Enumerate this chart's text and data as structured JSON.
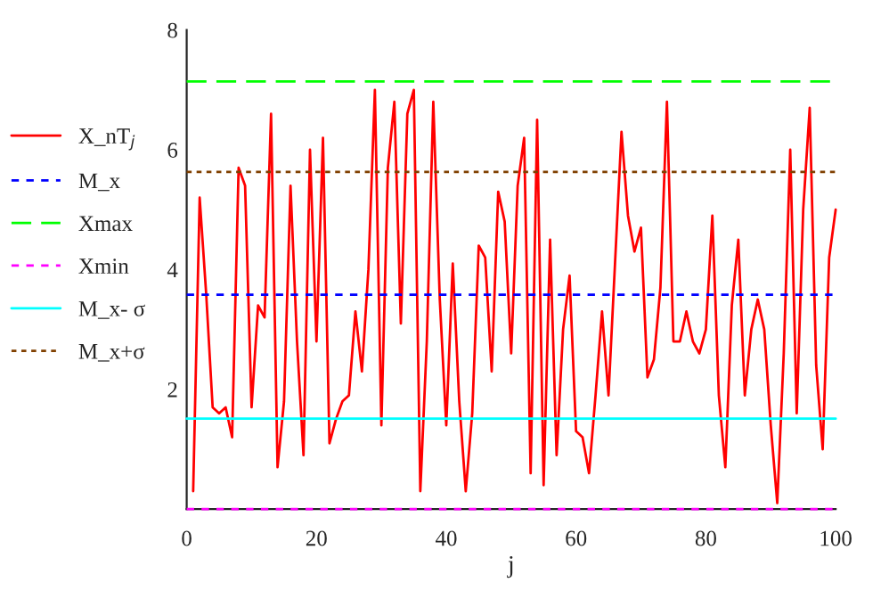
{
  "chart_data": {
    "type": "line",
    "xlabel": "j",
    "xlim": [
      0,
      100
    ],
    "xticks": [
      0,
      20,
      40,
      60,
      80,
      100
    ],
    "ylim": [
      0,
      8
    ],
    "yticks": [
      {
        "value": 0,
        "label": null
      },
      2,
      4,
      6,
      8
    ],
    "grid": false,
    "legend": "left",
    "marker": "none",
    "series": [
      {
        "name": "X_nT$_{j}$",
        "color": "#ff0000",
        "line_style": "solid",
        "x": [
          1,
          2,
          3,
          4,
          5,
          6,
          7,
          8,
          9,
          10,
          11,
          12,
          13,
          14,
          15,
          16,
          17,
          18,
          19,
          20,
          21,
          22,
          23,
          24,
          25,
          26,
          27,
          28,
          29,
          30,
          31,
          32,
          33,
          34,
          35,
          36,
          37,
          38,
          39,
          40,
          41,
          42,
          43,
          44,
          45,
          46,
          47,
          48,
          49,
          50,
          51,
          52,
          53,
          54,
          55,
          56,
          57,
          58,
          59,
          60,
          61,
          62,
          63,
          64,
          65,
          66,
          67,
          68,
          69,
          70,
          71,
          72,
          73,
          74,
          75,
          76,
          77,
          78,
          79,
          80,
          81,
          82,
          83,
          84,
          85,
          86,
          87,
          88,
          89,
          90,
          91,
          92,
          93,
          94,
          95,
          96,
          97,
          98,
          99,
          100
        ],
        "values": [
          0.3,
          5.2,
          3.6,
          1.7,
          1.6,
          1.7,
          1.2,
          5.7,
          5.4,
          1.7,
          3.4,
          3.2,
          6.6,
          0.7,
          1.8,
          5.4,
          2.8,
          0.9,
          6.0,
          2.8,
          6.2,
          1.1,
          1.5,
          1.8,
          1.9,
          3.3,
          2.3,
          4.0,
          7.0,
          1.4,
          5.7,
          6.8,
          3.1,
          6.6,
          7.0,
          0.3,
          2.8,
          6.8,
          3.5,
          1.4,
          4.1,
          1.8,
          0.3,
          1.6,
          4.4,
          4.2,
          2.3,
          5.3,
          4.8,
          2.6,
          5.4,
          6.2,
          0.6,
          6.5,
          0.4,
          4.5,
          0.9,
          3.0,
          3.9,
          1.3,
          1.2,
          0.6,
          1.9,
          3.3,
          1.9,
          4.1,
          6.3,
          4.9,
          4.3,
          4.7,
          2.2,
          2.5,
          3.7,
          6.8,
          2.8,
          2.8,
          3.3,
          2.8,
          2.6,
          3.0,
          4.9,
          1.9,
          0.7,
          3.4,
          4.5,
          1.9,
          3.0,
          3.5,
          3.0,
          1.4,
          0.1,
          2.6,
          6.0,
          1.6,
          5.0,
          6.7,
          2.4,
          1.0,
          4.2,
          5.0
        ]
      },
      {
        "name": "M_x",
        "color": "#0000ff",
        "line_style": "dashed",
        "x": [
          0,
          100
        ],
        "values": [
          3.58,
          3.58
        ]
      },
      {
        "name": "Xmax",
        "color": "#00ff00",
        "line_style": "longdash",
        "x": [
          0,
          100
        ],
        "values": [
          7.14,
          7.14
        ]
      },
      {
        "name": "Xmin",
        "color": "#ff00ff",
        "line_style": "dashed",
        "x": [
          0,
          100
        ],
        "values": [
          0.0,
          0.0
        ]
      },
      {
        "name": "M_x- σ",
        "color": "#00ffff",
        "line_style": "solid",
        "x": [
          0,
          100
        ],
        "values": [
          1.51,
          1.51
        ]
      },
      {
        "name": "M_x+σ",
        "color": "#804000",
        "line_style": "dotted",
        "x": [
          0,
          100
        ],
        "values": [
          5.63,
          5.63
        ]
      }
    ]
  }
}
